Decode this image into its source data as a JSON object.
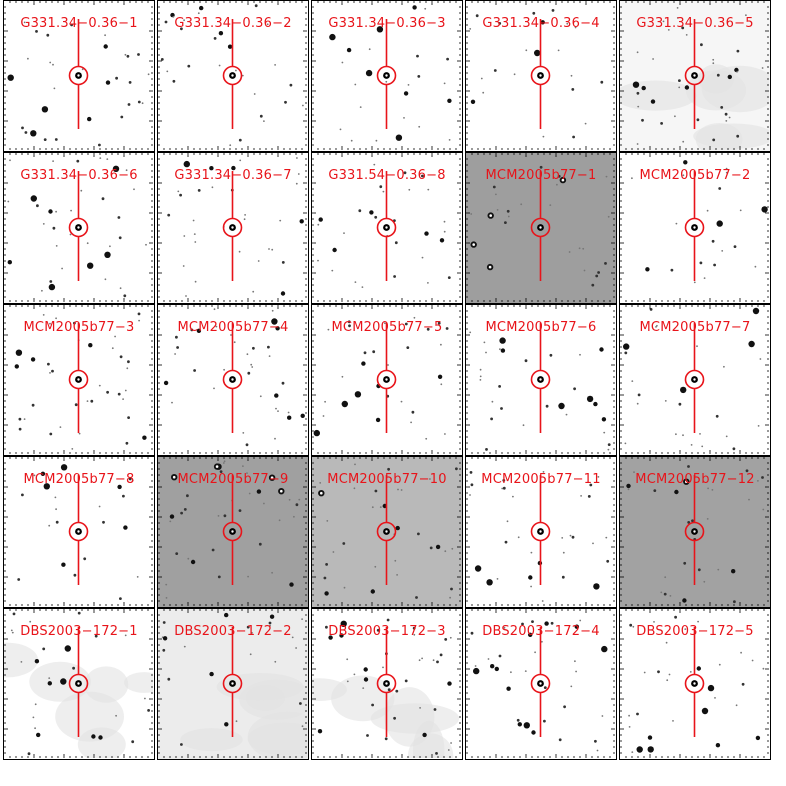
{
  "figure": {
    "marker_color": "#e8141a",
    "panels": [
      {
        "label": "G331.34−0.36−1",
        "background": "#ffffff"
      },
      {
        "label": "G331.34−0.36−2",
        "background": "#ffffff"
      },
      {
        "label": "G331.34−0.36−3",
        "background": "#ffffff"
      },
      {
        "label": "G331.34−0.36−4",
        "background": "#ffffff"
      },
      {
        "label": "G331.34−0.36−5",
        "background": "#f6f6f6"
      },
      {
        "label": "G331.34−0.36−6",
        "background": "#ffffff"
      },
      {
        "label": "G331.34−0.36−7",
        "background": "#ffffff"
      },
      {
        "label": "G331.54−0.36−8",
        "background": "#ffffff"
      },
      {
        "label": "MCM2005b77−1",
        "background": "#9e9e9e"
      },
      {
        "label": "MCM2005b77−2",
        "background": "#ffffff"
      },
      {
        "label": "MCM2005b77−3",
        "background": "#ffffff"
      },
      {
        "label": "MCM2005b77−4",
        "background": "#ffffff"
      },
      {
        "label": "MCM2005b77−5",
        "background": "#ffffff"
      },
      {
        "label": "MCM2005b77−6",
        "background": "#ffffff"
      },
      {
        "label": "MCM2005b77−7",
        "background": "#ffffff"
      },
      {
        "label": "MCM2005b77−8",
        "background": "#ffffff"
      },
      {
        "label": "MCM2005b77−9",
        "background": "#a0a0a0"
      },
      {
        "label": "MCM2005b77−10",
        "background": "#b9b9b9"
      },
      {
        "label": "MCM2005b77−11",
        "background": "#ffffff"
      },
      {
        "label": "MCM2005b77−12",
        "background": "#a2a2a2"
      },
      {
        "label": "DBS2003−172−1",
        "background": "#ffffff"
      },
      {
        "label": "DBS2003−172−2",
        "background": "#ececec"
      },
      {
        "label": "DBS2003−172−3",
        "background": "#ffffff"
      },
      {
        "label": "DBS2003−172−4",
        "background": "#ffffff"
      },
      {
        "label": "DBS2003−172−5",
        "background": "#ffffff"
      }
    ]
  }
}
